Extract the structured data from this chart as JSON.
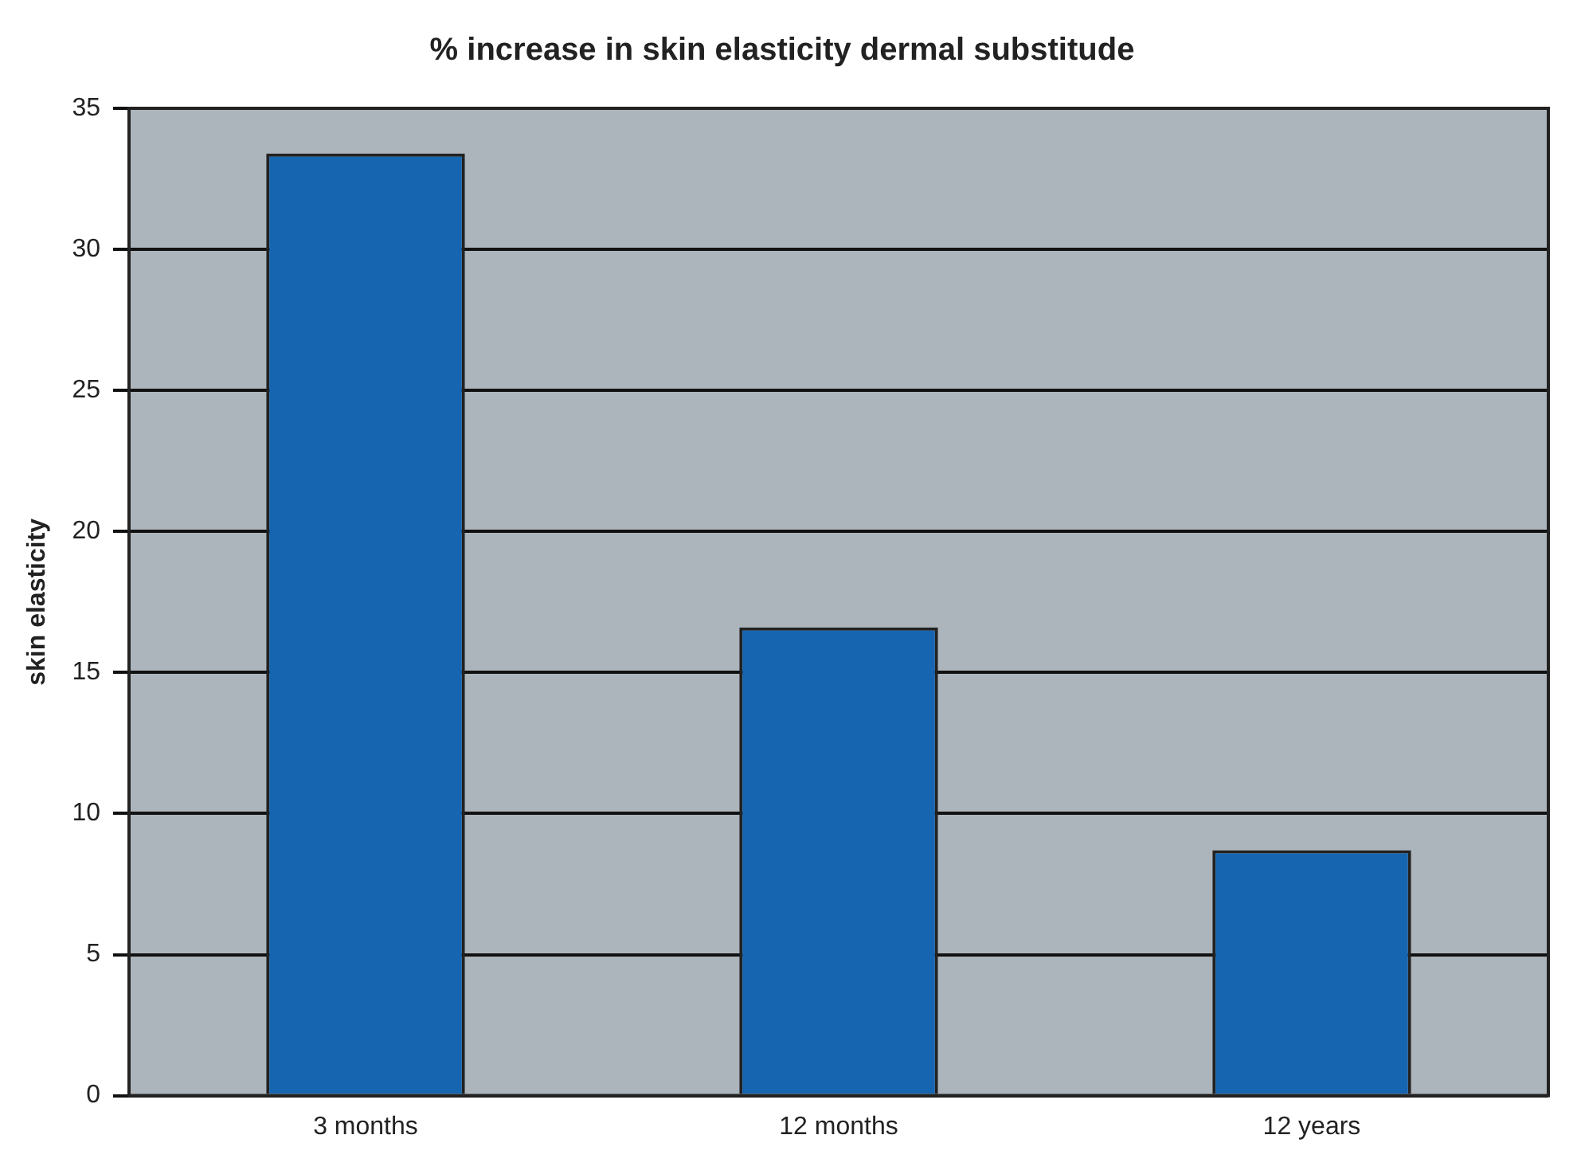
{
  "chart_data": {
    "type": "bar",
    "title": "% increase in skin elasticity dermal substitude",
    "ylabel": "skin elasticity",
    "categories": [
      "3 months",
      "12 months",
      "12 years"
    ],
    "values": [
      33.4,
      16.6,
      8.7
    ],
    "color": "#1565b0",
    "ylim": [
      0,
      35
    ],
    "yticks": [
      0,
      5,
      10,
      15,
      20,
      25,
      30,
      35
    ],
    "grid": "y",
    "legend": false
  }
}
